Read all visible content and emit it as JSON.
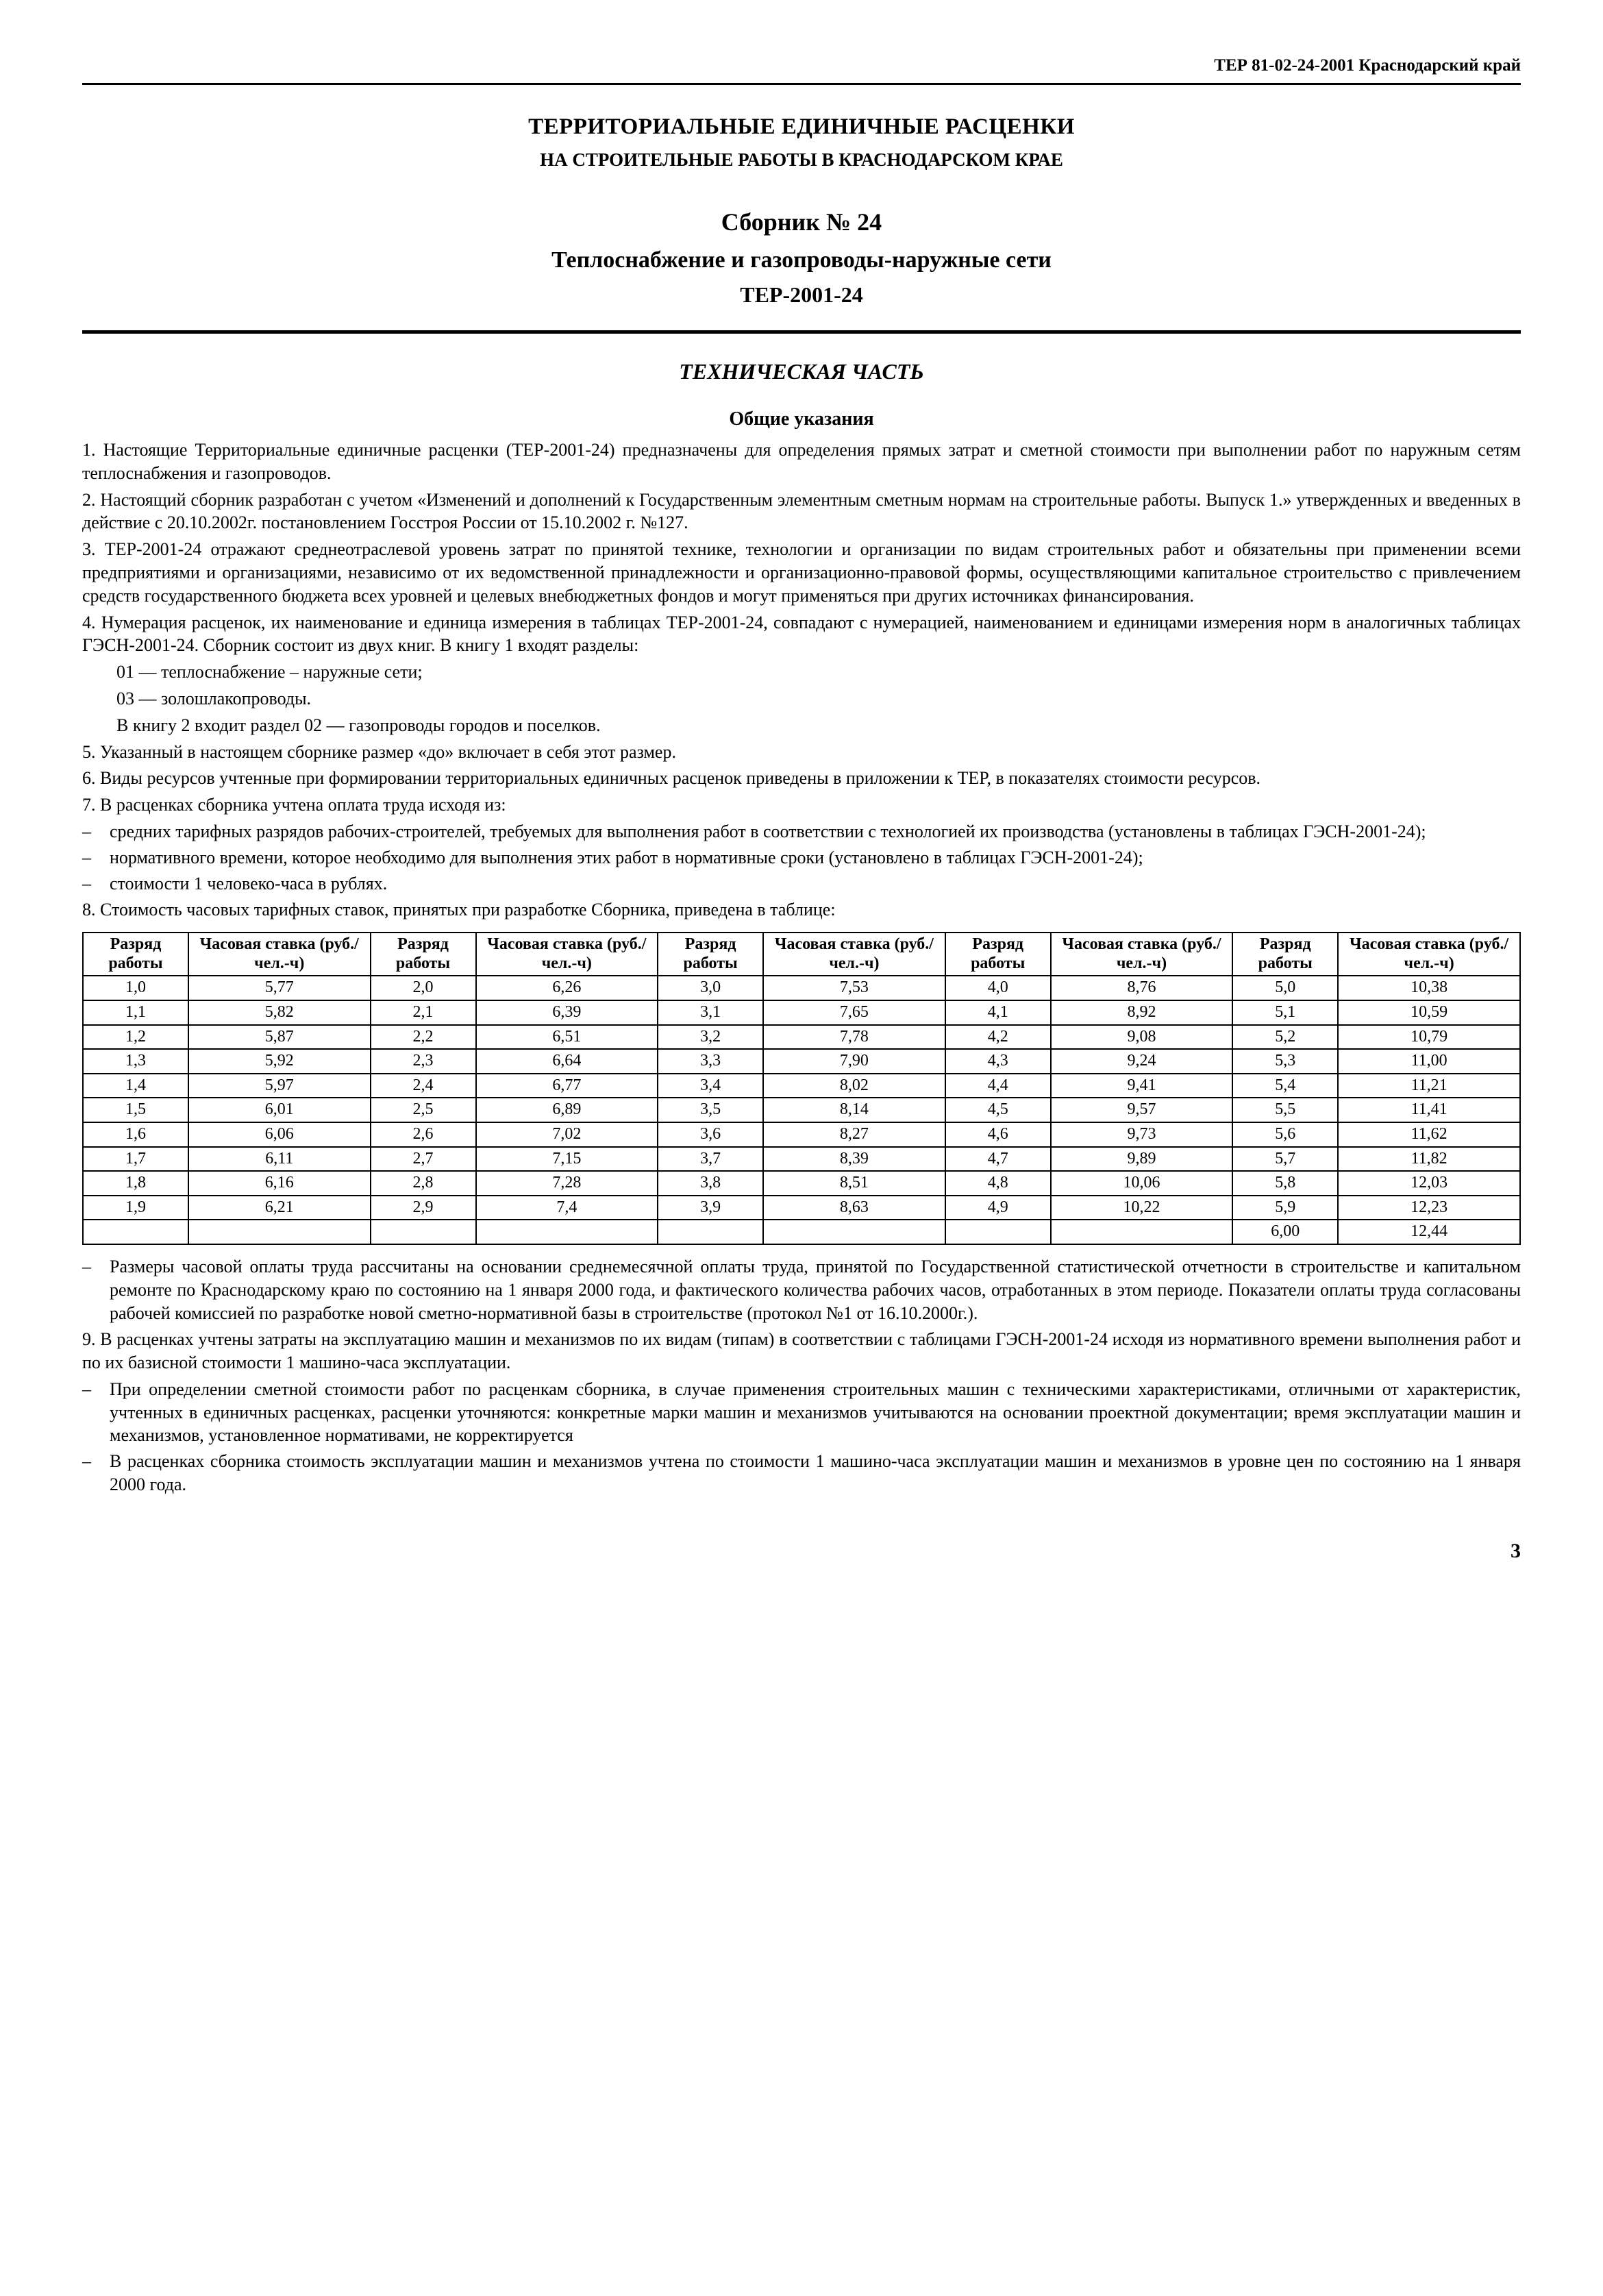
{
  "header": "ТЕР 81-02-24-2001 Краснодарский край",
  "title_main": "ТЕРРИТОРИАЛЬНЫЕ ЕДИНИЧНЫЕ РАСЦЕНКИ",
  "title_sub": "НА СТРОИТЕЛЬНЫЕ РАБОТЫ В КРАСНОДАРСКОМ КРАЕ",
  "sbornik": "Сборник № 24",
  "sbornik_name": "Теплоснабжение и газопроводы-наружные сети",
  "sbornik_code": "ТЕР-2001-24",
  "tech_part": "ТЕХНИЧЕСКАЯ ЧАСТЬ",
  "general": "Общие указания",
  "p1": "1.   Настоящие Территориальные единичные расценки (ТЕР-2001-24) предназначены для определения прямых затрат и сметной стоимости при выполнении работ по наружным сетям теплоснабжения и газопроводов.",
  "p2": "2.   Настоящий сборник разработан с учетом «Изменений и дополнений к Государственным элементным сметным нормам на строительные работы. Выпуск 1.» утвержденных и введенных в действие с 20.10.2002г. постановлением Госстроя России от 15.10.2002 г. №127.",
  "p3": "3.   ТЕР-2001-24 отражают среднеотраслевой  уровень затрат по принятой технике,  технологии и организации по видам строительных работ и  обязательны при применении всеми предприятиями и организациями, независимо от их ведомственной принадлежности и организационно-правовой формы, осуществляющими капитальное строительство с привлечением средств государственного бюджета всех уровней и целевых внебюджетных фондов и  могут применяться при других источниках финансирования.",
  "p4": "4.   Нумерация расценок, их наименование и единица измерения в таблицах ТЕР-2001-24, совпадают с нумерацией, наименованием и единицами измерения норм в аналогичных таблицах ГЭСН-2001-24. Сборник состоит из двух книг. В книгу 1 входят разделы:",
  "p4a": "01 — теплоснабжение – наружные сети;",
  "p4b": "03 — золошлакопроводы.",
  "p4c": "В книгу 2 входит раздел 02 — газопроводы городов и поселков.",
  "p5": "5.   Указанный в настоящем сборнике размер «до» включает в себя этот размер.",
  "p6": "6.   Виды ресурсов учтенные при формировании территориальных единичных расценок приведены в приложении к ТЕР, в показателях стоимости ресурсов.",
  "p7": "7.   В расценках сборника учтена оплата труда исходя из:",
  "p7a": "средних тарифных разрядов рабочих-строителей, требуемых для выполнения работ в соответствии с технологией их производства (установлены в таблицах ГЭСН-2001-24);",
  "p7b": "нормативного времени, которое необходимо для выполнения этих работ в нормативные сроки (установлено в таблицах ГЭСН-2001-24);",
  "p7c": "стоимости 1 человеко-часа в рублях.",
  "p8": "8.   Стоимость часовых тарифных ставок, принятых при разработке Сборника, приведена в таблице:",
  "table": {
    "head_r": "Разряд работы",
    "head_s": "Часовая ставка (руб./чел.-ч)",
    "rows": [
      [
        "1,0",
        "5,77",
        "2,0",
        "6,26",
        "3,0",
        "7,53",
        "4,0",
        "8,76",
        "5,0",
        "10,38"
      ],
      [
        "1,1",
        "5,82",
        "2,1",
        "6,39",
        "3,1",
        "7,65",
        "4,1",
        "8,92",
        "5,1",
        "10,59"
      ],
      [
        "1,2",
        "5,87",
        "2,2",
        "6,51",
        "3,2",
        "7,78",
        "4,2",
        "9,08",
        "5,2",
        "10,79"
      ],
      [
        "1,3",
        "5,92",
        "2,3",
        "6,64",
        "3,3",
        "7,90",
        "4,3",
        "9,24",
        "5,3",
        "11,00"
      ],
      [
        "1,4",
        "5,97",
        "2,4",
        "6,77",
        "3,4",
        "8,02",
        "4,4",
        "9,41",
        "5,4",
        "11,21"
      ],
      [
        "1,5",
        "6,01",
        "2,5",
        "6,89",
        "3,5",
        "8,14",
        "4,5",
        "9,57",
        "5,5",
        "11,41"
      ],
      [
        "1,6",
        "6,06",
        "2,6",
        "7,02",
        "3,6",
        "8,27",
        "4,6",
        "9,73",
        "5,6",
        "11,62"
      ],
      [
        "1,7",
        "6,11",
        "2,7",
        "7,15",
        "3,7",
        "8,39",
        "4,7",
        "9,89",
        "5,7",
        "11,82"
      ],
      [
        "1,8",
        "6,16",
        "2,8",
        "7,28",
        "3,8",
        "8,51",
        "4,8",
        "10,06",
        "5,8",
        "12,03"
      ],
      [
        "1,9",
        "6,21",
        "2,9",
        "7,4",
        "3,9",
        "8,63",
        "4,9",
        "10,22",
        "5,9",
        "12,23"
      ],
      [
        "",
        "",
        "",
        "",
        "",
        "",
        "",
        "",
        "6,00",
        "12,44"
      ]
    ]
  },
  "p8a": "Размеры часовой оплаты труда рассчитаны на основании среднемесячной оплаты труда, принятой по Государственной статистической отчетности в строительстве и капитальном ремонте по Краснодарскому краю по состоянию на 1 января 2000 года, и фактического количества рабочих часов, отработанных в этом периоде. Показатели оплаты труда согласованы рабочей комиссией по разработке новой сметно-нормативной базы в строительстве (протокол №1 от 16.10.2000г.).",
  "p9": "9.   В расценках учтены затраты на эксплуатацию машин и механизмов по их видам (типам) в соответствии с таблицами ГЭСН-2001-24 исходя из нормативного времени выполнения работ и по их базисной стоимости 1 машино-часа эксплуатации.",
  "p9a": "При определении сметной стоимости работ по расценкам сборника, в случае применения строительных машин с техническими характеристиками, отличными от характеристик, учтенных в единичных расценках, расценки уточняются: конкретные марки машин и механизмов учитываются на основании проектной документации; время эксплуатации машин и механизмов, установленное нормативами, не корректируется",
  "p9b": "В расценках сборника стоимость эксплуатации машин и механизмов учтена по стоимости 1 машино-часа эксплуатации машин и механизмов в уровне цен по состоянию на 1 января 2000 года.",
  "page": "3",
  "dash": "–"
}
